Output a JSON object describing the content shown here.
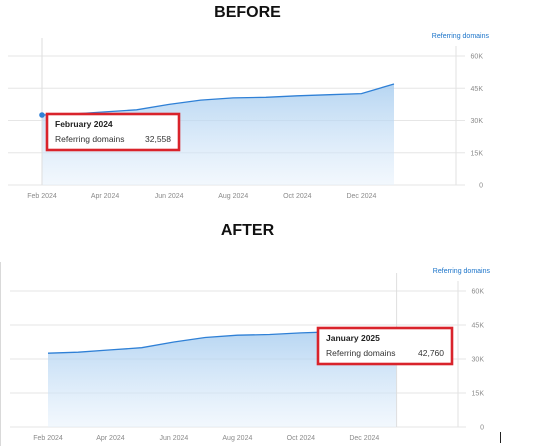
{
  "headings": {
    "before": "BEFORE",
    "after": "AFTER"
  },
  "chart_data": [
    {
      "name": "before",
      "type": "area",
      "legend": "Referring domains",
      "legend_position": "top-right",
      "y_axis_position": "right",
      "grid": true,
      "ylim": [
        0,
        60000
      ],
      "y_ticks": [
        {
          "value": 60000,
          "label": "60K"
        },
        {
          "value": 45000,
          "label": "45K"
        },
        {
          "value": 30000,
          "label": "30K"
        },
        {
          "value": 15000,
          "label": "15K"
        },
        {
          "value": 0,
          "label": "0"
        }
      ],
      "x_ticks": [
        {
          "value": "2024-02-01",
          "label": "Feb 2024"
        },
        {
          "value": "2024-04-01",
          "label": "Apr 2024"
        },
        {
          "value": "2024-06-01",
          "label": "Jun 2024"
        },
        {
          "value": "2024-08-01",
          "label": "Aug 2024"
        },
        {
          "value": "2024-10-01",
          "label": "Oct 2024"
        },
        {
          "value": "2024-12-01",
          "label": "Dec 2024"
        }
      ],
      "x_range": [
        "2024-02-01",
        "2025-03-01"
      ],
      "series": [
        {
          "name": "Referring domains",
          "color": "#2f80d6",
          "x": [
            "2024-02-01",
            "2024-03-01",
            "2024-04-01",
            "2024-05-01",
            "2024-06-01",
            "2024-07-01",
            "2024-08-01",
            "2024-09-01",
            "2024-10-01",
            "2024-11-01",
            "2024-12-01",
            "2025-01-01"
          ],
          "values": [
            32558,
            33000,
            34000,
            35000,
            37500,
            39500,
            40500,
            40800,
            41500,
            42000,
            42500,
            47000
          ]
        }
      ],
      "highlight_index": 0,
      "tooltip": {
        "title": "February 2024",
        "label": "Referring domains",
        "value": "32,558"
      }
    },
    {
      "name": "after",
      "type": "area",
      "legend": "Referring domains",
      "legend_position": "top-right",
      "y_axis_position": "right",
      "grid": true,
      "ylim": [
        0,
        60000
      ],
      "y_ticks": [
        {
          "value": 60000,
          "label": "60K"
        },
        {
          "value": 45000,
          "label": "45K"
        },
        {
          "value": 30000,
          "label": "30K"
        },
        {
          "value": 15000,
          "label": "15K"
        },
        {
          "value": 0,
          "label": "0"
        }
      ],
      "x_ticks": [
        {
          "value": "2024-02-01",
          "label": "Feb 2024"
        },
        {
          "value": "2024-04-01",
          "label": "Apr 2024"
        },
        {
          "value": "2024-06-01",
          "label": "Jun 2024"
        },
        {
          "value": "2024-08-01",
          "label": "Aug 2024"
        },
        {
          "value": "2024-10-01",
          "label": "Oct 2024"
        },
        {
          "value": "2024-12-01",
          "label": "Dec 2024"
        }
      ],
      "x_range": [
        "2024-02-01",
        "2025-03-01"
      ],
      "series": [
        {
          "name": "Referring domains",
          "color": "#2f80d6",
          "x": [
            "2024-02-01",
            "2024-03-01",
            "2024-04-01",
            "2024-05-01",
            "2024-06-01",
            "2024-07-01",
            "2024-08-01",
            "2024-09-01",
            "2024-10-01",
            "2024-11-01",
            "2024-12-01",
            "2025-01-01"
          ],
          "values": [
            32558,
            33000,
            34000,
            35000,
            37500,
            39500,
            40500,
            40800,
            41500,
            42000,
            42500,
            42760
          ]
        }
      ],
      "highlight_index": 11,
      "tooltip": {
        "title": "January 2025",
        "label": "Referring domains",
        "value": "42,760"
      }
    }
  ],
  "colors": {
    "line": "#2f80d6",
    "highlight_box": "#d9232b",
    "legend": "#1a73c9",
    "grid": "#e6e6e6"
  }
}
